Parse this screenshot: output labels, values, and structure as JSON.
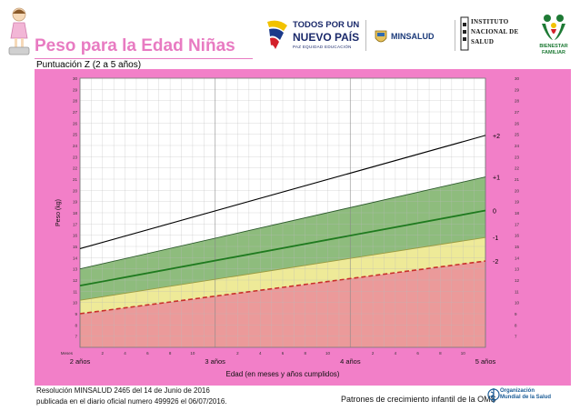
{
  "header": {
    "title": "Peso para la Edad Niñas",
    "subtitle": "Puntuación Z (2 a 5 años)"
  },
  "logos": {
    "tpn_line1": "TODOS POR UN",
    "tpn_line2": "NUEVO PAÍS",
    "tpn_line3": "PAZ EQUIDAD EDUCACIÓN",
    "minsalud": "MINSALUD",
    "ins_line1": "INSTITUTO",
    "ins_line2": "NACIONAL DE",
    "ins_line3": "SALUD",
    "bf_line1": "BIENESTAR",
    "bf_line2": "FAMILIAR"
  },
  "footer": {
    "resolution": "Resolución MINSALUD 2465 del 14 de Junio de 2016",
    "published": "publicada en el diario oficial numero 499926 el 06/07/2016.",
    "oms_text": "Patrones de crecimiento infantil de la OMS",
    "org_line1": "Organización",
    "org_line2": "Mundial de la Salud"
  },
  "colors": {
    "frame": "#f27fc8",
    "green_band": "#8ebc7d",
    "yellow_band": "#eeea98",
    "red_band": "#eb9a9a",
    "median_line": "#1f7a1f",
    "minus2_line": "#c8302b",
    "plus2_line": "#000000",
    "title_pink": "#e87bc2"
  },
  "chart_data": {
    "type": "line",
    "title": "",
    "xlabel": "Edad (en meses y años cumplidos)",
    "ylabel": "Peso (kg)",
    "xlim": [
      24,
      60
    ],
    "ylim": [
      6,
      30
    ],
    "y_ticks": [
      7,
      8,
      9,
      10,
      11,
      12,
      13,
      14,
      15,
      16,
      17,
      18,
      19,
      20,
      21,
      22,
      23,
      24,
      25,
      26,
      27,
      28,
      29,
      30
    ],
    "month_label": "Meses",
    "month_ticks": [
      {
        "x": 26,
        "label": "2"
      },
      {
        "x": 28,
        "label": "4"
      },
      {
        "x": 30,
        "label": "6"
      },
      {
        "x": 32,
        "label": "8"
      },
      {
        "x": 34,
        "label": "10"
      },
      {
        "x": 38,
        "label": "2"
      },
      {
        "x": 40,
        "label": "4"
      },
      {
        "x": 42,
        "label": "6"
      },
      {
        "x": 44,
        "label": "8"
      },
      {
        "x": 46,
        "label": "10"
      },
      {
        "x": 50,
        "label": "2"
      },
      {
        "x": 52,
        "label": "4"
      },
      {
        "x": 54,
        "label": "6"
      },
      {
        "x": 56,
        "label": "8"
      },
      {
        "x": 58,
        "label": "10"
      }
    ],
    "year_ticks": [
      {
        "x": 24,
        "label": "2 años"
      },
      {
        "x": 36,
        "label": "3 años"
      },
      {
        "x": 48,
        "label": "4 años"
      },
      {
        "x": 60,
        "label": "5 años"
      }
    ],
    "x": [
      24,
      60
    ],
    "series": [
      {
        "name": "+2",
        "values": [
          14.8,
          24.9
        ]
      },
      {
        "name": "+1",
        "values": [
          13.0,
          21.2
        ]
      },
      {
        "name": "0",
        "values": [
          11.5,
          18.2
        ]
      },
      {
        "name": "-1",
        "values": [
          10.2,
          15.8
        ]
      },
      {
        "name": "-2",
        "values": [
          9.0,
          13.7
        ]
      }
    ],
    "grid": true
  }
}
